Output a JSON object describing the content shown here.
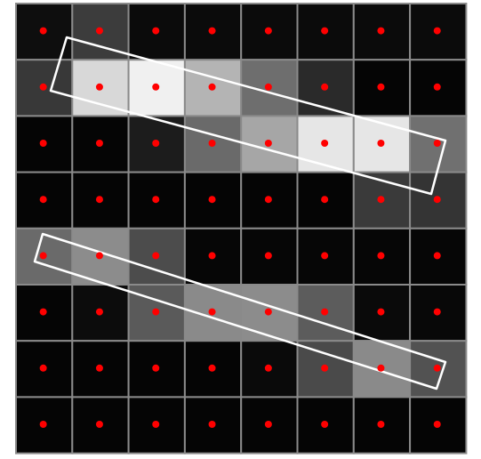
{
  "grid": {
    "rows": 8,
    "cols": 8,
    "grid_line_color": "#8a8a8a",
    "dot_color": "#ff0000",
    "outline_color": "#ffffff",
    "shades": [
      [
        "#0e0e0e",
        "#3c3c3c",
        "#0b0b0b",
        "#0b0b0b",
        "#0b0b0b",
        "#0b0b0b",
        "#0b0b0b",
        "#0b0b0b"
      ],
      [
        "#383838",
        "#d8d8d8",
        "#f0f0f0",
        "#b4b4b4",
        "#6e6e6e",
        "#2a2a2a",
        "#050505",
        "#050505"
      ],
      [
        "#050505",
        "#050505",
        "#1c1c1c",
        "#6a6a6a",
        "#a6a6a6",
        "#e6e6e6",
        "#e6e6e6",
        "#707070"
      ],
      [
        "#050505",
        "#050505",
        "#050505",
        "#050505",
        "#050505",
        "#050505",
        "#3a3a3a",
        "#343434"
      ],
      [
        "#6a6a6a",
        "#8c8c8c",
        "#4c4c4c",
        "#060606",
        "#060606",
        "#060606",
        "#060606",
        "#060606"
      ],
      [
        "#050505",
        "#0c0c0c",
        "#5a5a5a",
        "#8a8a8a",
        "#8c8c8c",
        "#5c5c5c",
        "#0a0a0a",
        "#080808"
      ],
      [
        "#050505",
        "#050505",
        "#050505",
        "#050505",
        "#0a0a0a",
        "#4a4a4a",
        "#8a8a8a",
        "#525252"
      ],
      [
        "#050505",
        "#050505",
        "#050505",
        "#050505",
        "#050505",
        "#050505",
        "#050505",
        "#050505"
      ]
    ]
  },
  "regions": [
    {
      "name": "upper-rotated-rectangle"
    },
    {
      "name": "lower-rotated-rectangle"
    }
  ]
}
